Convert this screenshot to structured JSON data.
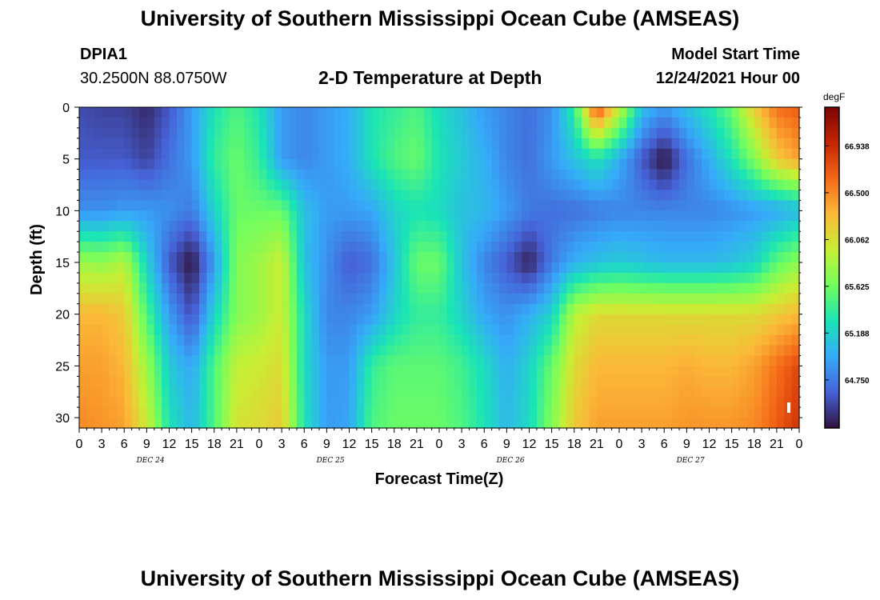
{
  "header": {
    "title": "University of Southern Mississippi Ocean Cube (AMSEAS)",
    "station": "DPIA1",
    "location": "30.2500N  88.0750W",
    "subtitle": "2-D Temperature at Depth",
    "model_start_label": "Model Start Time",
    "model_start_value": "12/24/2021 Hour 00"
  },
  "footer": {
    "title": "University of Southern Mississippi Ocean Cube (AMSEAS)"
  },
  "chart_data": {
    "type": "heatmap",
    "title": "2-D Temperature at Depth",
    "xlabel": "Forecast Time(Z)",
    "ylabel": "Depth (ft)",
    "x_ticks": [
      "0",
      "3",
      "6",
      "9",
      "12",
      "15",
      "18",
      "21",
      "0",
      "3",
      "6",
      "9",
      "12",
      "15",
      "18",
      "21",
      "0",
      "3",
      "6",
      "9",
      "12",
      "15",
      "18",
      "21",
      "0",
      "3",
      "6",
      "9",
      "12",
      "15",
      "18",
      "21",
      "0"
    ],
    "date_labels": [
      "DEC 24",
      "DEC 25",
      "DEC 26",
      "DEC 27"
    ],
    "y_ticks": [
      "0",
      "5",
      "10",
      "15",
      "20",
      "25",
      "30"
    ],
    "xlim": [
      0,
      96
    ],
    "ylim": [
      0,
      31
    ],
    "colorbar": {
      "unit": "degF",
      "ticks": [
        "66.938",
        "66.500",
        "66.062",
        "65.625",
        "65.188",
        "64.750"
      ],
      "range": [
        64.3,
        67.3
      ],
      "colors": [
        "#30123b",
        "#4662d7",
        "#36aaf9",
        "#1ae4b6",
        "#72fe5e",
        "#c7ef34",
        "#fbb938",
        "#f56918",
        "#c42503",
        "#7a0403"
      ]
    },
    "depths_ft": [
      0,
      5,
      10,
      15,
      20,
      25,
      31
    ],
    "times_hr": [
      0,
      3,
      6,
      9,
      12,
      15,
      18,
      21,
      24,
      27,
      30,
      33,
      36,
      39,
      42,
      45,
      48,
      51,
      54,
      57,
      60,
      63,
      66,
      69,
      72,
      75,
      78,
      81,
      84,
      87,
      90,
      93,
      96
    ],
    "values_degF": [
      [
        64.55,
        64.5,
        64.5,
        64.4,
        64.6,
        64.9,
        65.3,
        65.5,
        65.3,
        64.9,
        64.8,
        64.9,
        65.0,
        65.3,
        65.4,
        65.5,
        65.25,
        65.1,
        64.9,
        64.8,
        64.7,
        64.85,
        65.4,
        66.8,
        66.0,
        65.1,
        64.9,
        65.1,
        65.3,
        65.6,
        66.2,
        66.6,
        66.7
      ],
      [
        64.6,
        64.6,
        64.6,
        64.5,
        64.7,
        64.9,
        65.4,
        65.6,
        65.4,
        64.9,
        64.8,
        64.9,
        65.0,
        65.3,
        65.5,
        65.6,
        65.3,
        65.15,
        65.0,
        64.8,
        64.7,
        64.9,
        65.1,
        65.3,
        65.0,
        64.6,
        64.3,
        64.7,
        65.0,
        65.3,
        65.7,
        66.2,
        66.4
      ],
      [
        64.85,
        64.85,
        64.9,
        64.9,
        64.85,
        64.75,
        65.2,
        65.6,
        65.6,
        65.6,
        65.1,
        64.9,
        64.9,
        64.95,
        65.2,
        65.3,
        65.25,
        65.1,
        65.05,
        64.9,
        64.75,
        64.7,
        64.7,
        64.75,
        64.8,
        64.8,
        64.8,
        64.8,
        64.8,
        64.85,
        64.9,
        64.95,
        65.05
      ],
      [
        65.8,
        65.75,
        65.9,
        65.2,
        64.6,
        64.3,
        64.9,
        65.7,
        65.8,
        66.0,
        65.1,
        64.85,
        64.6,
        64.7,
        65.1,
        65.6,
        65.6,
        65.1,
        64.8,
        64.6,
        64.35,
        64.75,
        65.0,
        65.1,
        65.15,
        65.1,
        65.05,
        65.05,
        65.05,
        65.1,
        65.2,
        65.55,
        65.75
      ],
      [
        66.3,
        66.3,
        66.2,
        65.5,
        64.9,
        64.55,
        65.2,
        65.7,
        65.8,
        66.0,
        65.25,
        64.8,
        64.8,
        64.9,
        65.2,
        65.4,
        65.4,
        65.2,
        64.95,
        64.85,
        65.0,
        65.2,
        65.9,
        66.1,
        66.1,
        66.1,
        66.1,
        66.1,
        66.1,
        66.1,
        66.1,
        66.2,
        66.3
      ],
      [
        66.4,
        66.4,
        66.3,
        65.8,
        65.15,
        64.95,
        65.5,
        65.95,
        66.0,
        66.1,
        65.25,
        64.9,
        64.9,
        65.4,
        65.55,
        65.55,
        65.55,
        65.45,
        65.25,
        65.0,
        65.2,
        65.6,
        66.1,
        66.3,
        66.3,
        66.3,
        66.3,
        66.35,
        66.3,
        66.3,
        66.4,
        66.6,
        66.8
      ],
      [
        66.5,
        66.45,
        66.4,
        66.0,
        65.3,
        65.05,
        65.5,
        66.05,
        66.1,
        66.2,
        65.3,
        64.9,
        64.95,
        65.5,
        65.6,
        65.6,
        65.6,
        65.5,
        65.3,
        65.05,
        65.25,
        65.7,
        66.2,
        66.4,
        66.4,
        66.4,
        66.4,
        66.45,
        66.45,
        66.45,
        66.5,
        66.7,
        66.9
      ]
    ]
  }
}
